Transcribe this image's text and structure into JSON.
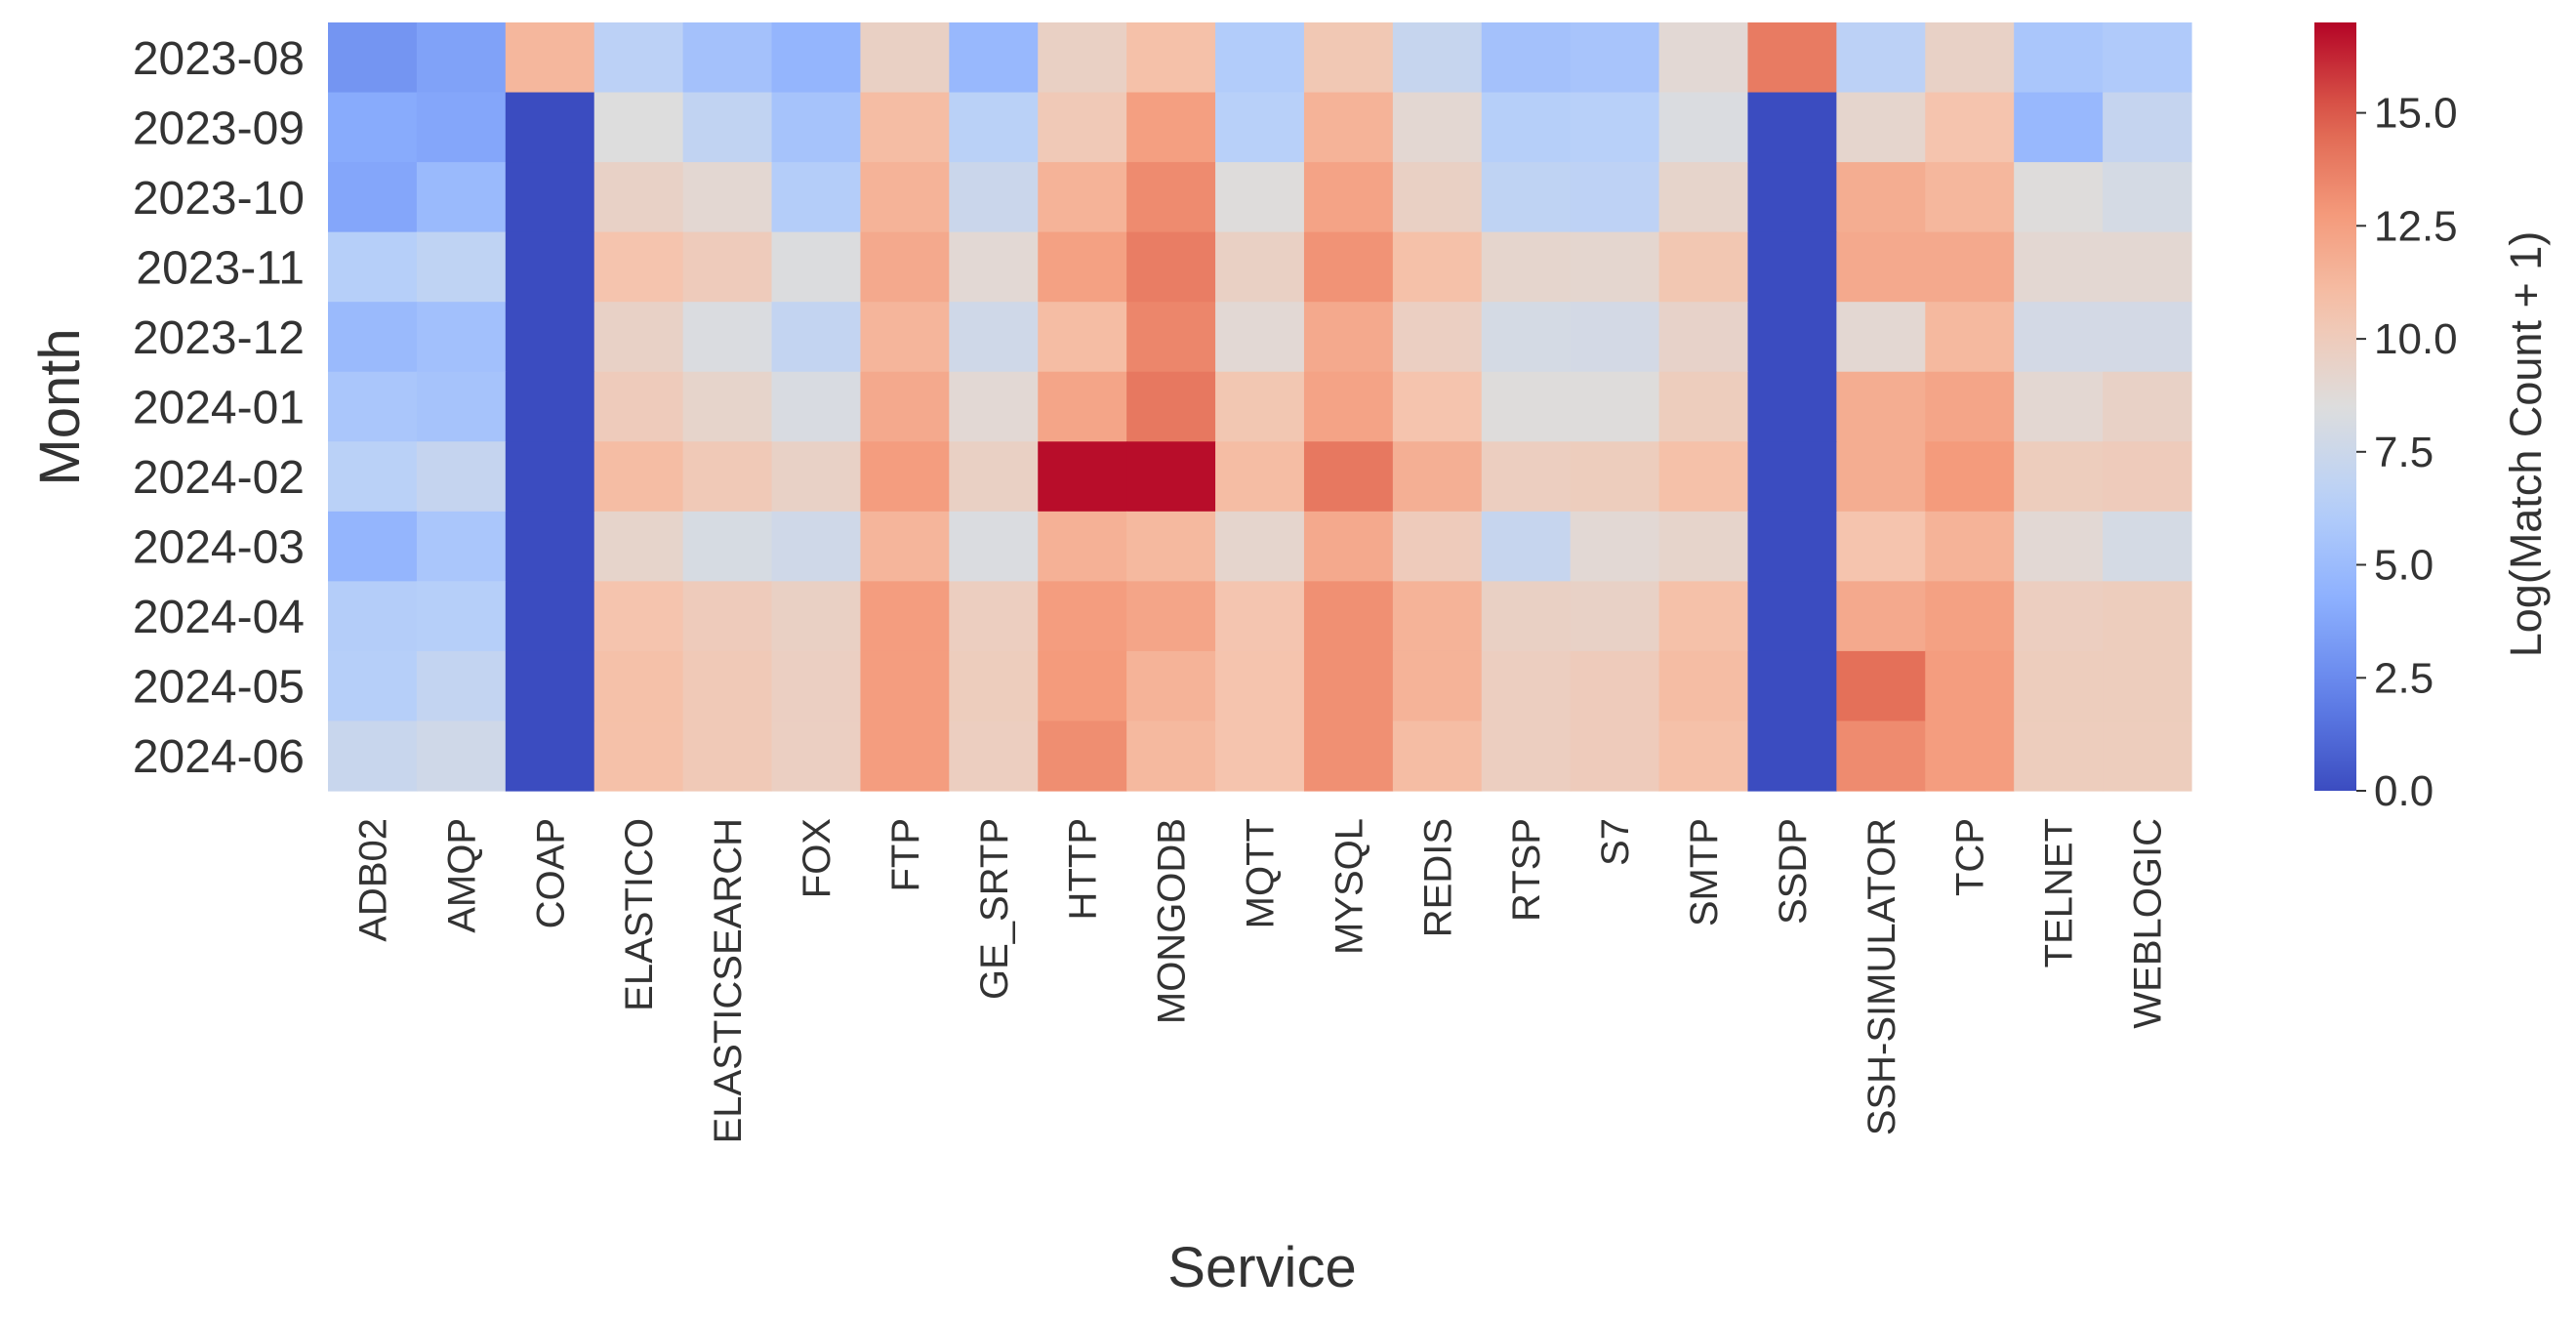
{
  "chart_data": {
    "type": "heatmap",
    "xlabel": "Service",
    "ylabel": "Month",
    "colorbar_label": "Log(Match Count + 1)",
    "colormap": "coolwarm",
    "vmin": 0,
    "vmax": 17,
    "colorbar_ticks": [
      "0.0",
      "2.5",
      "5.0",
      "7.5",
      "10.0",
      "12.5",
      "15.0"
    ],
    "months": [
      "2023-08",
      "2023-09",
      "2023-10",
      "2023-11",
      "2023-12",
      "2024-01",
      "2024-02",
      "2024-03",
      "2024-04",
      "2024-05",
      "2024-06"
    ],
    "services": [
      "ADB02",
      "AMQP",
      "COAP",
      "ELASTICO",
      "ELASTICSEARCH",
      "FOX",
      "FTP",
      "GE_SRTP",
      "HTTP",
      "MONGODB",
      "MQTT",
      "MYSQL",
      "REDIS",
      "RTSP",
      "S7",
      "SMTP",
      "SSDP",
      "SSH-SIMULATOR",
      "TCP",
      "TELNET",
      "WEBLOGIC"
    ],
    "values": [
      [
        3.0,
        3.6,
        11.3,
        6.6,
        5.4,
        4.6,
        9.6,
        4.8,
        9.6,
        10.8,
        6.1,
        10.3,
        7.2,
        5.4,
        5.6,
        8.9,
        13.9,
        6.6,
        9.5,
        5.7,
        6.0
      ],
      [
        4.0,
        3.8,
        0.0,
        8.5,
        6.9,
        5.5,
        11.0,
        6.5,
        10.2,
        12.5,
        6.4,
        11.5,
        9.0,
        6.3,
        6.4,
        8.3,
        0.0,
        9.2,
        10.6,
        4.8,
        7.1
      ],
      [
        3.8,
        4.9,
        0.0,
        9.5,
        9.0,
        6.2,
        11.5,
        7.4,
        11.5,
        13.3,
        8.6,
        12.3,
        9.6,
        6.8,
        6.7,
        9.3,
        0.0,
        11.8,
        11.3,
        8.6,
        8.0
      ],
      [
        6.3,
        6.8,
        0.0,
        10.6,
        10.0,
        8.4,
        12.0,
        8.9,
        12.4,
        13.8,
        9.6,
        13.0,
        10.8,
        9.2,
        9.1,
        10.4,
        0.0,
        12.0,
        12.0,
        9.0,
        9.0
      ],
      [
        4.9,
        5.3,
        0.0,
        9.5,
        8.3,
        7.0,
        11.4,
        7.7,
        11.0,
        13.5,
        8.9,
        12.0,
        9.7,
        8.0,
        7.9,
        9.4,
        0.0,
        9.0,
        11.2,
        7.9,
        7.9
      ],
      [
        5.7,
        5.5,
        0.0,
        10.0,
        9.3,
        8.2,
        12.0,
        8.9,
        12.2,
        14.0,
        10.4,
        12.3,
        10.6,
        8.6,
        8.6,
        9.9,
        0.0,
        11.8,
        12.2,
        9.0,
        9.5
      ],
      [
        6.5,
        7.1,
        0.0,
        11.0,
        10.2,
        9.5,
        12.6,
        9.6,
        16.8,
        16.8,
        11.0,
        14.0,
        11.7,
        9.8,
        9.9,
        10.8,
        0.0,
        11.8,
        12.7,
        9.9,
        10.0
      ],
      [
        4.6,
        5.7,
        0.0,
        9.3,
        8.1,
        7.7,
        11.4,
        8.3,
        11.6,
        11.2,
        9.2,
        12.0,
        10.0,
        7.2,
        8.9,
        9.3,
        0.0,
        10.6,
        11.5,
        8.9,
        8.0
      ],
      [
        6.2,
        6.3,
        0.0,
        10.6,
        10.0,
        9.6,
        12.6,
        9.8,
        12.6,
        12.2,
        10.5,
        13.1,
        11.5,
        9.6,
        9.5,
        10.8,
        0.0,
        12.0,
        12.4,
        9.8,
        9.9
      ],
      [
        6.3,
        7.0,
        0.0,
        10.8,
        10.2,
        9.7,
        12.6,
        9.9,
        12.7,
        11.5,
        10.6,
        13.1,
        11.5,
        9.8,
        10.0,
        11.0,
        0.0,
        14.3,
        12.6,
        9.9,
        9.9
      ],
      [
        7.3,
        7.7,
        0.0,
        10.8,
        10.2,
        9.7,
        12.6,
        9.8,
        13.2,
        11.2,
        10.6,
        13.1,
        11.0,
        9.8,
        10.0,
        10.8,
        0.0,
        13.3,
        12.6,
        9.9,
        9.9
      ]
    ]
  }
}
